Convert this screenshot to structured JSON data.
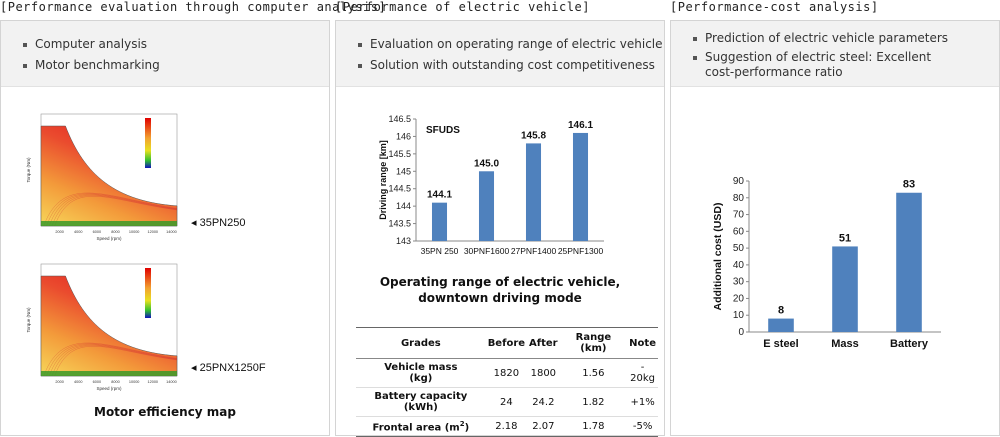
{
  "col1": {
    "title": "[Performance evaluation through computer analysis]",
    "bullets": [
      "Computer analysis",
      "Motor benchmarking"
    ],
    "map1_label": "◂ 35PN250",
    "map2_label": "◂ 25PNX1250F",
    "caption": "Motor efficiency map",
    "map_axis": {
      "xlabel": "Speed (rpm)",
      "ylabel": "Torque (Nm)",
      "xticks": [
        "2000",
        "4000",
        "6000",
        "8000",
        "10000",
        "12000",
        "14000"
      ]
    }
  },
  "col2": {
    "title": "[Performance of electric vehicle]",
    "bullets": [
      "Evaluation on operating range of electric vehicle",
      "Solution with outstanding cost competitiveness"
    ],
    "caption_line1": "Operating range of electric vehicle,",
    "caption_line2": "downtown driving mode",
    "table": {
      "headers": [
        "Grades",
        "Before",
        "After",
        "Range (km)",
        "Note"
      ],
      "rows": [
        {
          "grade_line1": "Vehicle mass",
          "grade_line2": "(kg)",
          "before": "1820",
          "after": "1800",
          "range": "1.56",
          "note_line1": "-",
          "note_line2": "20kg"
        },
        {
          "grade_line1": "Battery capacity (kWh)",
          "grade_line2": "",
          "before": "24",
          "after": "24.2",
          "range": "1.82",
          "note_line1": "+1%",
          "note_line2": ""
        },
        {
          "grade_line1": "Frontal area (m",
          "grade_sup": "2",
          "grade_line2": ")",
          "before": "2.18",
          "after": "2.07",
          "range": "1.78",
          "note_line1": "-5%",
          "note_line2": ""
        }
      ]
    }
  },
  "col3": {
    "title": "[Performance-cost analysis]",
    "bullets": [
      "Prediction of electric vehicle parameters",
      "Suggestion of electric steel: Excellent cost-performance ratio"
    ]
  },
  "chart_data": [
    {
      "type": "bar",
      "title": "SFUDS",
      "categories": [
        "35PN 250",
        "30PNF1600",
        "27PNF1400",
        "25PNF1300"
      ],
      "values": [
        144.1,
        145.0,
        145.8,
        146.1
      ],
      "data_labels": [
        "144.1",
        "145.0",
        "145.8",
        "146.1"
      ],
      "xlabel": "",
      "ylabel": "Driving range [km]",
      "ylim": [
        143,
        146.5
      ],
      "yticks": [
        "143",
        "143.5",
        "144",
        "144.5",
        "145",
        "145.5",
        "146",
        "146.5"
      ],
      "bar_color": "#4f81bd",
      "grid": false
    },
    {
      "type": "bar",
      "title": "",
      "categories": [
        "E steel",
        "Mass",
        "Battery"
      ],
      "values": [
        8,
        51,
        83
      ],
      "data_labels": [
        "8",
        "51",
        "83"
      ],
      "xlabel": "",
      "ylabel": "Additional cost  (USD)",
      "ylim": [
        0,
        90
      ],
      "yticks": [
        "0",
        "10",
        "20",
        "30",
        "40",
        "50",
        "60",
        "70",
        "80",
        "90"
      ],
      "bar_color": "#4f81bd",
      "grid": false
    }
  ]
}
